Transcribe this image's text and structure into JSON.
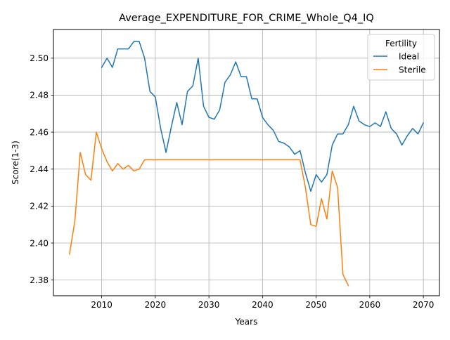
{
  "chart_data": {
    "type": "line",
    "title": "Average_EXPENDITURE_FOR_CRIME_Whole_Q4_IQ",
    "xlabel": "Years",
    "ylabel": "Score(1-3)",
    "xlim": [
      2001,
      2073
    ],
    "ylim": [
      2.3715,
      2.5155
    ],
    "xticks": [
      2010,
      2020,
      2030,
      2040,
      2050,
      2060,
      2070
    ],
    "yticks": [
      2.38,
      2.4,
      2.42,
      2.44,
      2.46,
      2.48,
      2.5
    ],
    "ytick_labels": [
      "2.38",
      "2.40",
      "2.42",
      "2.44",
      "2.46",
      "2.48",
      "2.50"
    ],
    "grid": true,
    "legend": {
      "title": "Fertility",
      "position": "top-right"
    },
    "series": [
      {
        "name": "Ideal",
        "color": "#1f77b4",
        "x": [
          2010,
          2011,
          2012,
          2013,
          2014,
          2015,
          2016,
          2017,
          2018,
          2019,
          2020,
          2021,
          2022,
          2023,
          2024,
          2025,
          2026,
          2027,
          2028,
          2029,
          2030,
          2031,
          2032,
          2033,
          2034,
          2035,
          2036,
          2037,
          2038,
          2039,
          2040,
          2041,
          2042,
          2043,
          2044,
          2045,
          2046,
          2047,
          2048,
          2049,
          2050,
          2051,
          2052,
          2053,
          2054,
          2055,
          2056,
          2057,
          2058,
          2059,
          2060,
          2061,
          2062,
          2063,
          2064,
          2065,
          2066,
          2067,
          2068,
          2069,
          2070
        ],
        "values": [
          2.495,
          2.5,
          2.495,
          2.505,
          2.505,
          2.505,
          2.509,
          2.509,
          2.5,
          2.482,
          2.479,
          2.462,
          2.449,
          2.463,
          2.476,
          2.464,
          2.482,
          2.485,
          2.5,
          2.474,
          2.468,
          2.467,
          2.472,
          2.487,
          2.491,
          2.498,
          2.49,
          2.49,
          2.478,
          2.478,
          2.468,
          2.464,
          2.461,
          2.455,
          2.454,
          2.452,
          2.448,
          2.45,
          2.438,
          2.428,
          2.437,
          2.433,
          2.437,
          2.453,
          2.459,
          2.459,
          2.464,
          2.474,
          2.466,
          2.464,
          2.463,
          2.465,
          2.463,
          2.471,
          2.462,
          2.459,
          2.453,
          2.458,
          2.462,
          2.459,
          2.465
        ]
      },
      {
        "name": "Sterile",
        "color": "#ff7f0e",
        "x": [
          2004,
          2005,
          2006,
          2007,
          2008,
          2009,
          2010,
          2011,
          2012,
          2013,
          2014,
          2015,
          2016,
          2017,
          2018,
          2019,
          2020,
          2021,
          2022,
          2023,
          2024,
          2025,
          2026,
          2027,
          2028,
          2029,
          2030,
          2031,
          2032,
          2033,
          2034,
          2035,
          2036,
          2037,
          2038,
          2039,
          2040,
          2041,
          2042,
          2043,
          2044,
          2045,
          2046,
          2047,
          2048,
          2049,
          2050,
          2051,
          2052,
          2053,
          2054,
          2055,
          2056
        ],
        "values": [
          2.394,
          2.412,
          2.449,
          2.437,
          2.434,
          2.46,
          2.451,
          2.444,
          2.439,
          2.443,
          2.44,
          2.442,
          2.439,
          2.44,
          2.445,
          2.445,
          2.445,
          2.445,
          2.445,
          2.445,
          2.445,
          2.445,
          2.445,
          2.445,
          2.445,
          2.445,
          2.445,
          2.445,
          2.445,
          2.445,
          2.445,
          2.445,
          2.445,
          2.445,
          2.445,
          2.445,
          2.445,
          2.445,
          2.445,
          2.445,
          2.445,
          2.445,
          2.445,
          2.445,
          2.43,
          2.41,
          2.409,
          2.424,
          2.413,
          2.439,
          2.43,
          2.383,
          2.377
        ]
      }
    ]
  }
}
